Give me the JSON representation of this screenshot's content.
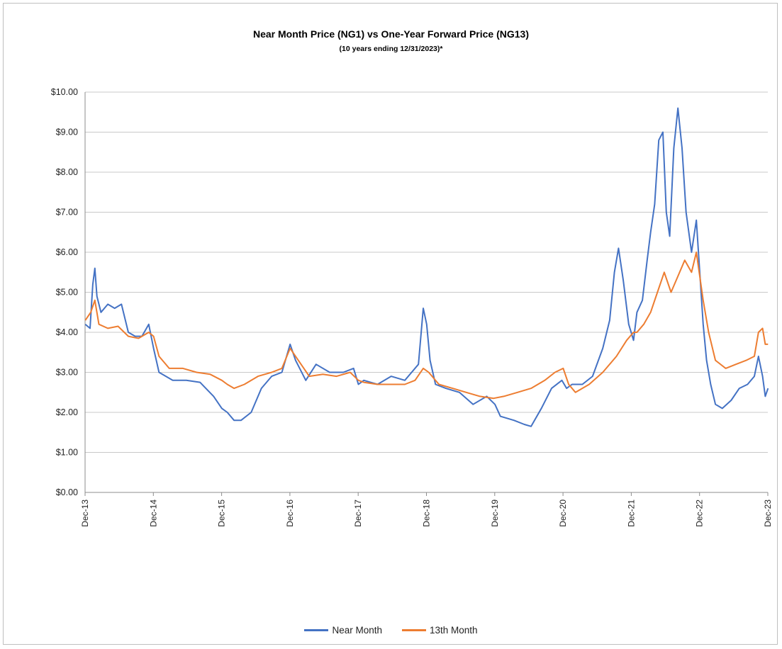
{
  "chart_data": {
    "type": "line",
    "title": "Near Month Price (NG1) vs One-Year Forward Price (NG13)",
    "subtitle": "(10 years ending  12/31/2023)*",
    "ylim": [
      0,
      10
    ],
    "y_ticks": [
      "$0.00",
      "$1.00",
      "$2.00",
      "$3.00",
      "$4.00",
      "$5.00",
      "$6.00",
      "$7.00",
      "$8.00",
      "$9.00",
      "$10.00"
    ],
    "x_ticks": [
      "Dec-13",
      "Dec-14",
      "Dec-15",
      "Dec-16",
      "Dec-17",
      "Dec-18",
      "Dec-19",
      "Dec-20",
      "Dec-21",
      "Dec-22",
      "Dec-23"
    ],
    "xlim": [
      2013.917,
      2023.917
    ],
    "grid": "horizontal",
    "legend_position": "bottom",
    "series": [
      {
        "name": "Near Month",
        "color": "#4472c4",
        "points": [
          [
            2013.92,
            4.2
          ],
          [
            2013.99,
            4.1
          ],
          [
            2014.03,
            5.2
          ],
          [
            2014.06,
            5.6
          ],
          [
            2014.09,
            4.9
          ],
          [
            2014.15,
            4.5
          ],
          [
            2014.25,
            4.7
          ],
          [
            2014.35,
            4.6
          ],
          [
            2014.45,
            4.7
          ],
          [
            2014.55,
            4.0
          ],
          [
            2014.65,
            3.9
          ],
          [
            2014.75,
            3.9
          ],
          [
            2014.85,
            4.2
          ],
          [
            2014.92,
            3.6
          ],
          [
            2015.0,
            3.0
          ],
          [
            2015.2,
            2.8
          ],
          [
            2015.4,
            2.8
          ],
          [
            2015.6,
            2.75
          ],
          [
            2015.8,
            2.4
          ],
          [
            2015.92,
            2.1
          ],
          [
            2016.0,
            2.0
          ],
          [
            2016.1,
            1.8
          ],
          [
            2016.2,
            1.8
          ],
          [
            2016.35,
            2.0
          ],
          [
            2016.5,
            2.6
          ],
          [
            2016.65,
            2.9
          ],
          [
            2016.8,
            3.0
          ],
          [
            2016.92,
            3.7
          ],
          [
            2017.0,
            3.3
          ],
          [
            2017.15,
            2.8
          ],
          [
            2017.3,
            3.2
          ],
          [
            2017.5,
            3.0
          ],
          [
            2017.7,
            3.0
          ],
          [
            2017.85,
            3.1
          ],
          [
            2017.92,
            2.7
          ],
          [
            2018.0,
            2.8
          ],
          [
            2018.2,
            2.7
          ],
          [
            2018.4,
            2.9
          ],
          [
            2018.6,
            2.8
          ],
          [
            2018.7,
            3.0
          ],
          [
            2018.8,
            3.2
          ],
          [
            2018.87,
            4.6
          ],
          [
            2018.92,
            4.2
          ],
          [
            2018.97,
            3.3
          ],
          [
            2019.05,
            2.7
          ],
          [
            2019.2,
            2.6
          ],
          [
            2019.4,
            2.5
          ],
          [
            2019.6,
            2.2
          ],
          [
            2019.8,
            2.4
          ],
          [
            2019.92,
            2.2
          ],
          [
            2020.0,
            1.9
          ],
          [
            2020.2,
            1.8
          ],
          [
            2020.35,
            1.7
          ],
          [
            2020.45,
            1.65
          ],
          [
            2020.6,
            2.1
          ],
          [
            2020.75,
            2.6
          ],
          [
            2020.9,
            2.8
          ],
          [
            2020.97,
            2.6
          ],
          [
            2021.05,
            2.7
          ],
          [
            2021.2,
            2.7
          ],
          [
            2021.35,
            2.9
          ],
          [
            2021.5,
            3.6
          ],
          [
            2021.6,
            4.3
          ],
          [
            2021.67,
            5.5
          ],
          [
            2021.73,
            6.1
          ],
          [
            2021.8,
            5.3
          ],
          [
            2021.88,
            4.2
          ],
          [
            2021.95,
            3.8
          ],
          [
            2022.0,
            4.5
          ],
          [
            2022.08,
            4.8
          ],
          [
            2022.15,
            5.8
          ],
          [
            2022.2,
            6.5
          ],
          [
            2022.26,
            7.2
          ],
          [
            2022.32,
            8.8
          ],
          [
            2022.38,
            9.0
          ],
          [
            2022.43,
            7.0
          ],
          [
            2022.48,
            6.4
          ],
          [
            2022.54,
            8.6
          ],
          [
            2022.6,
            9.6
          ],
          [
            2022.66,
            8.6
          ],
          [
            2022.72,
            7.0
          ],
          [
            2022.8,
            6.0
          ],
          [
            2022.87,
            6.8
          ],
          [
            2022.92,
            5.5
          ],
          [
            2022.97,
            4.2
          ],
          [
            2023.02,
            3.3
          ],
          [
            2023.08,
            2.7
          ],
          [
            2023.15,
            2.2
          ],
          [
            2023.25,
            2.1
          ],
          [
            2023.38,
            2.3
          ],
          [
            2023.5,
            2.6
          ],
          [
            2023.62,
            2.7
          ],
          [
            2023.72,
            2.9
          ],
          [
            2023.78,
            3.4
          ],
          [
            2023.84,
            2.9
          ],
          [
            2023.88,
            2.4
          ],
          [
            2023.92,
            2.6
          ]
        ]
      },
      {
        "name": "13th Month",
        "color": "#ed7d31",
        "points": [
          [
            2013.92,
            4.3
          ],
          [
            2014.0,
            4.5
          ],
          [
            2014.06,
            4.8
          ],
          [
            2014.12,
            4.2
          ],
          [
            2014.25,
            4.1
          ],
          [
            2014.4,
            4.15
          ],
          [
            2014.55,
            3.9
          ],
          [
            2014.7,
            3.85
          ],
          [
            2014.85,
            4.0
          ],
          [
            2014.92,
            3.9
          ],
          [
            2015.0,
            3.4
          ],
          [
            2015.15,
            3.1
          ],
          [
            2015.35,
            3.1
          ],
          [
            2015.55,
            3.0
          ],
          [
            2015.75,
            2.95
          ],
          [
            2015.92,
            2.8
          ],
          [
            2016.0,
            2.7
          ],
          [
            2016.1,
            2.6
          ],
          [
            2016.25,
            2.7
          ],
          [
            2016.45,
            2.9
          ],
          [
            2016.65,
            3.0
          ],
          [
            2016.8,
            3.1
          ],
          [
            2016.92,
            3.6
          ],
          [
            2017.0,
            3.4
          ],
          [
            2017.2,
            2.9
          ],
          [
            2017.4,
            2.95
          ],
          [
            2017.6,
            2.9
          ],
          [
            2017.8,
            3.0
          ],
          [
            2017.92,
            2.8
          ],
          [
            2018.0,
            2.75
          ],
          [
            2018.2,
            2.7
          ],
          [
            2018.4,
            2.7
          ],
          [
            2018.6,
            2.7
          ],
          [
            2018.75,
            2.8
          ],
          [
            2018.87,
            3.1
          ],
          [
            2018.95,
            3.0
          ],
          [
            2019.1,
            2.7
          ],
          [
            2019.3,
            2.6
          ],
          [
            2019.5,
            2.5
          ],
          [
            2019.7,
            2.4
          ],
          [
            2019.9,
            2.35
          ],
          [
            2020.05,
            2.4
          ],
          [
            2020.25,
            2.5
          ],
          [
            2020.45,
            2.6
          ],
          [
            2020.65,
            2.8
          ],
          [
            2020.8,
            3.0
          ],
          [
            2020.92,
            3.1
          ],
          [
            2021.0,
            2.7
          ],
          [
            2021.1,
            2.5
          ],
          [
            2021.3,
            2.7
          ],
          [
            2021.5,
            3.0
          ],
          [
            2021.7,
            3.4
          ],
          [
            2021.85,
            3.8
          ],
          [
            2021.95,
            4.0
          ],
          [
            2022.0,
            4.0
          ],
          [
            2022.1,
            4.2
          ],
          [
            2022.2,
            4.5
          ],
          [
            2022.3,
            5.0
          ],
          [
            2022.4,
            5.5
          ],
          [
            2022.5,
            5.0
          ],
          [
            2022.6,
            5.4
          ],
          [
            2022.7,
            5.8
          ],
          [
            2022.8,
            5.5
          ],
          [
            2022.87,
            6.0
          ],
          [
            2022.92,
            5.4
          ],
          [
            2022.97,
            4.8
          ],
          [
            2023.05,
            4.0
          ],
          [
            2023.15,
            3.3
          ],
          [
            2023.3,
            3.1
          ],
          [
            2023.45,
            3.2
          ],
          [
            2023.6,
            3.3
          ],
          [
            2023.72,
            3.4
          ],
          [
            2023.78,
            4.0
          ],
          [
            2023.84,
            4.1
          ],
          [
            2023.88,
            3.7
          ],
          [
            2023.92,
            3.7
          ]
        ]
      }
    ]
  }
}
